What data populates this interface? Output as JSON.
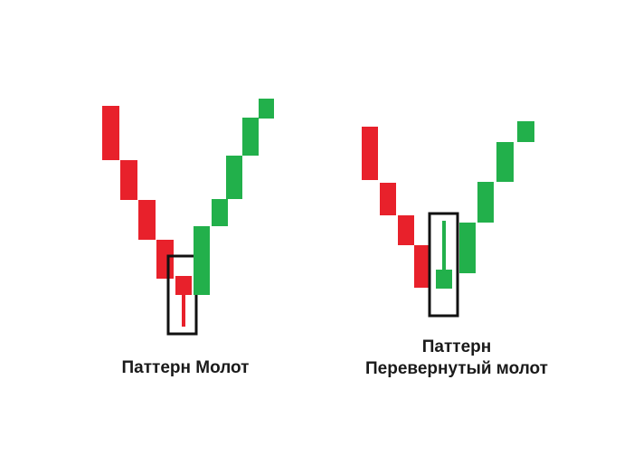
{
  "colors": {
    "bearish": "#e8212b",
    "bullish": "#22b04b",
    "highlight_box": "#111111",
    "background": "#ffffff"
  },
  "left_pattern": {
    "caption": "Паттерн Молот"
  },
  "right_pattern": {
    "caption_line1": "Паттерн",
    "caption_line2": "Перевернутый молот"
  }
}
